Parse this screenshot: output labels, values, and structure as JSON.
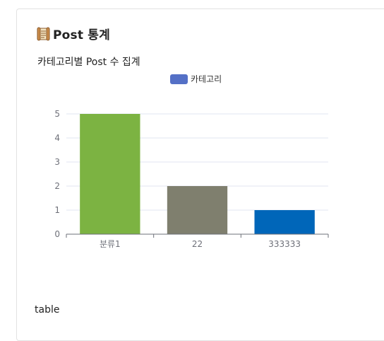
{
  "card": {
    "icon": "scroll-icon",
    "title": "Post 통계"
  },
  "chart_data": {
    "type": "bar",
    "title": "카테고리별 Post 수 집계",
    "legend": {
      "label": "카테고리",
      "color": "#5470c6",
      "placement": "top-center"
    },
    "categories": [
      "분류1",
      "22",
      "333333"
    ],
    "values": [
      5,
      2,
      1
    ],
    "bar_colors": [
      "#7cb342",
      "#7f7f6e",
      "#0066b9"
    ],
    "ylim": [
      0,
      5
    ],
    "yticks": [
      "0",
      "1",
      "2",
      "3",
      "4",
      "5"
    ],
    "grid": true,
    "xlabel": "",
    "ylabel": ""
  },
  "footer": {
    "table_label": "table"
  }
}
